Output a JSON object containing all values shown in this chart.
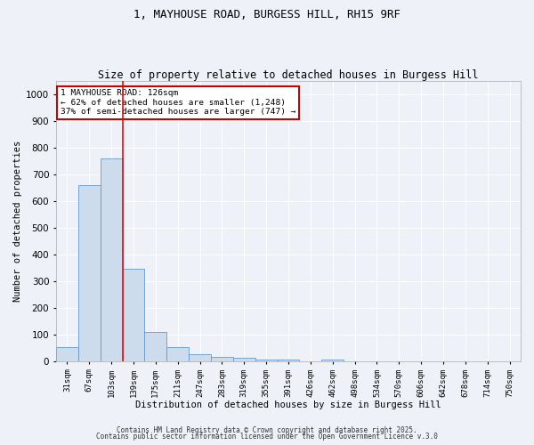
{
  "title1": "1, MAYHOUSE ROAD, BURGESS HILL, RH15 9RF",
  "title2": "Size of property relative to detached houses in Burgess Hill",
  "xlabel": "Distribution of detached houses by size in Burgess Hill",
  "ylabel": "Number of detached properties",
  "bar_labels": [
    "31sqm",
    "67sqm",
    "103sqm",
    "139sqm",
    "175sqm",
    "211sqm",
    "247sqm",
    "283sqm",
    "319sqm",
    "355sqm",
    "391sqm",
    "426sqm",
    "462sqm",
    "498sqm",
    "534sqm",
    "570sqm",
    "606sqm",
    "642sqm",
    "678sqm",
    "714sqm",
    "750sqm"
  ],
  "bar_values": [
    52,
    660,
    760,
    345,
    110,
    52,
    28,
    15,
    12,
    8,
    5,
    0,
    8,
    0,
    0,
    0,
    0,
    0,
    0,
    0,
    0
  ],
  "bar_color": "#ccdcec",
  "bar_edge_color": "#6699cc",
  "ylim": [
    0,
    1050
  ],
  "yticks": [
    0,
    100,
    200,
    300,
    400,
    500,
    600,
    700,
    800,
    900,
    1000
  ],
  "red_line_x": 2.5,
  "annotation_text": "1 MAYHOUSE ROAD: 126sqm\n← 62% of detached houses are smaller (1,248)\n37% of semi-detached houses are larger (747) →",
  "annotation_box_color": "#ffffff",
  "annotation_box_edge": "#cc0000",
  "footer1": "Contains HM Land Registry data © Crown copyright and database right 2025.",
  "footer2": "Contains public sector information licensed under the Open Government Licence v.3.0",
  "background_color": "#eef2f8",
  "grid_color": "#ffffff",
  "title1_fontsize": 9,
  "title2_fontsize": 8.5
}
